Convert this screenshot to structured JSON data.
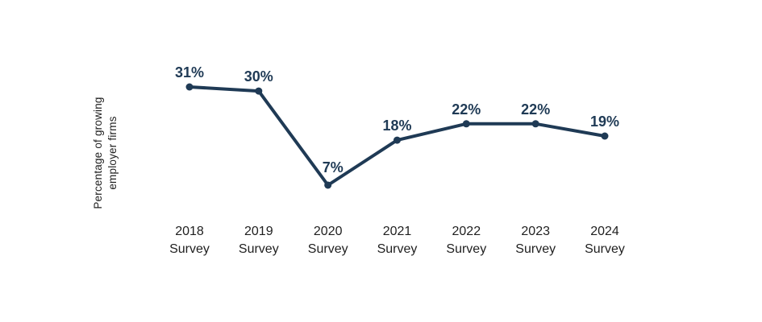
{
  "chart_data": {
    "type": "line",
    "categories": [
      "2018 Survey",
      "2019 Survey",
      "2020 Survey",
      "2021 Survey",
      "2022 Survey",
      "2023 Survey",
      "2024 Survey"
    ],
    "values": [
      31,
      30,
      7,
      18,
      22,
      22,
      19
    ],
    "point_labels": [
      "31%",
      "30%",
      "7%",
      "18%",
      "22%",
      "22%",
      "19%"
    ],
    "title": "",
    "xlabel": "",
    "ylabel": "Percentage of growing employer firms",
    "ylabel_lines": [
      "Percentage of growing",
      "employer firms"
    ],
    "ylim": [
      0,
      35
    ],
    "grid": false,
    "legend": "none",
    "colors": {
      "line": "#1f3a55",
      "point": "#1f3a55",
      "point_label": "#1f3a55",
      "axis_text": "#1f1f1f",
      "background": "#ffffff"
    }
  }
}
